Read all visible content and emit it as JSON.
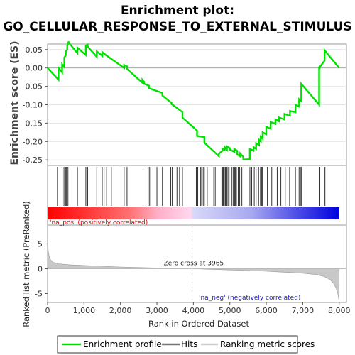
{
  "chart_data": {
    "type": "line",
    "title_line1": "Enrichment plot:",
    "title_line2": "GO_CELLULAR_RESPONSE_TO_EXTERNAL_STIMULUS",
    "es_panel": {
      "ylabel": "Enrichment score (ES)",
      "ylim": [
        -0.265,
        0.065
      ],
      "yticks": [
        "0.05",
        "0.00",
        "-0.05",
        "-0.10",
        "-0.15",
        "-0.20",
        "-0.25"
      ],
      "ytick_values": [
        0.05,
        0.0,
        -0.05,
        -0.1,
        -0.15,
        -0.2,
        -0.25
      ],
      "series_name": "Enrichment profile",
      "color": "#00e000",
      "x": [
        0,
        300,
        300,
        400,
        400,
        460,
        460,
        500,
        500,
        540,
        540,
        580,
        580,
        820,
        820,
        1050,
        1050,
        1100,
        1100,
        1350,
        1350,
        1500,
        1500,
        1600,
        1600,
        2100,
        2100,
        2180,
        2180,
        2600,
        2600,
        2650,
        2650,
        2780,
        2780,
        3150,
        3150,
        3400,
        3400,
        3700,
        3700,
        4100,
        4100,
        4300,
        4300,
        4700,
        4700,
        4800,
        4800,
        4860,
        4860,
        4920,
        4920,
        5000,
        5000,
        5120,
        5120,
        5200,
        5200,
        5280,
        5280,
        5370,
        5370,
        5550,
        5550,
        5650,
        5650,
        5720,
        5720,
        5800,
        5800,
        5850,
        5850,
        5900,
        5900,
        6000,
        6000,
        6120,
        6120,
        6250,
        6250,
        6350,
        6350,
        6500,
        6500,
        6650,
        6650,
        6800,
        6800,
        6900,
        6900,
        6960,
        6960,
        7450,
        7450,
        7470,
        7470,
        7600,
        7600,
        8000
      ],
      "y": [
        0.0,
        -0.032,
        0.0,
        -0.012,
        0.01,
        0.003,
        0.028,
        0.035,
        0.045,
        0.05,
        0.06,
        0.072,
        0.069,
        0.04,
        0.055,
        0.035,
        0.06,
        0.063,
        0.058,
        0.03,
        0.045,
        0.033,
        0.043,
        0.035,
        0.035,
        0.0,
        0.008,
        0.004,
        -0.003,
        -0.04,
        -0.032,
        -0.038,
        -0.043,
        -0.048,
        -0.055,
        -0.068,
        -0.075,
        -0.095,
        -0.098,
        -0.12,
        -0.135,
        -0.17,
        -0.185,
        -0.188,
        -0.203,
        -0.24,
        -0.233,
        -0.225,
        -0.22,
        -0.223,
        -0.215,
        -0.222,
        -0.213,
        -0.218,
        -0.222,
        -0.228,
        -0.22,
        -0.225,
        -0.235,
        -0.24,
        -0.232,
        -0.242,
        -0.249,
        -0.248,
        -0.22,
        -0.225,
        -0.215,
        -0.22,
        -0.205,
        -0.21,
        -0.195,
        -0.2,
        -0.187,
        -0.192,
        -0.175,
        -0.18,
        -0.16,
        -0.165,
        -0.147,
        -0.152,
        -0.14,
        -0.145,
        -0.135,
        -0.14,
        -0.125,
        -0.13,
        -0.117,
        -0.12,
        -0.1,
        -0.105,
        -0.085,
        -0.09,
        -0.043,
        -0.1,
        0.004,
        -0.002,
        0.003,
        0.02,
        0.048,
        0.0
      ]
    },
    "hits": [
      270,
      400,
      450,
      500,
      520,
      560,
      820,
      1050,
      1100,
      1350,
      1500,
      1550,
      1620,
      1750,
      2100,
      2180,
      2620,
      2760,
      2800,
      3000,
      3150,
      3380,
      3420,
      3550,
      3620,
      3700,
      4080,
      4120,
      4200,
      4230,
      4270,
      4300,
      4380,
      4560,
      4600,
      4780,
      4800,
      4820,
      4850,
      4880,
      4900,
      4920,
      4950,
      4980,
      5050,
      5090,
      5130,
      5150,
      5180,
      5230,
      5270,
      5330,
      5550,
      5600,
      5670,
      5720,
      5790,
      5840,
      5870,
      5890,
      6030,
      6150,
      6300,
      6400,
      6520,
      6640,
      6800,
      6900,
      6950,
      6960,
      7450,
      7470,
      7590,
      7610
    ],
    "metric_panel": {
      "ylabel": "Ranked list metric (PreRanked)",
      "ylim": [
        -6.8,
        8.8
      ],
      "yticks": [
        "5",
        "0",
        "-5"
      ],
      "ytick_values": [
        5,
        0,
        -5
      ],
      "xlabel": "Rank in Ordered Dataset",
      "xlim": [
        0,
        8200
      ],
      "xticks": [
        "0",
        "1,000",
        "2,000",
        "3,000",
        "4,000",
        "5,000",
        "6,000",
        "7,000",
        "8,000"
      ],
      "xtick_values": [
        0,
        1000,
        2000,
        3000,
        4000,
        5000,
        6000,
        7000,
        8000
      ],
      "zero_cross_label": "Zero cross at 3965",
      "zero_cross_value": 3965,
      "pos_label": "'na_pos' (positively correlated)",
      "neg_label": "'na_neg' (negatively correlated)",
      "metric_profile_x": [
        0,
        20,
        60,
        150,
        300,
        600,
        1000,
        2000,
        3000,
        3965,
        5000,
        6000,
        7000,
        7400,
        7600,
        7750,
        7850,
        7920,
        7960,
        7990,
        8000
      ],
      "metric_profile_y": [
        6.5,
        3.5,
        2.0,
        1.3,
        1.0,
        0.8,
        0.65,
        0.35,
        0.15,
        0.0,
        -0.25,
        -0.5,
        -0.9,
        -1.2,
        -1.6,
        -2.2,
        -3.0,
        -4.0,
        -5.0,
        -6.2,
        -6.5
      ]
    },
    "legend": {
      "items": [
        {
          "label": "Enrichment profile",
          "color": "#00e000"
        },
        {
          "label": "Hits",
          "color": "#777777"
        },
        {
          "label": "Ranking metric scores",
          "color": "#cccccc"
        }
      ]
    }
  }
}
